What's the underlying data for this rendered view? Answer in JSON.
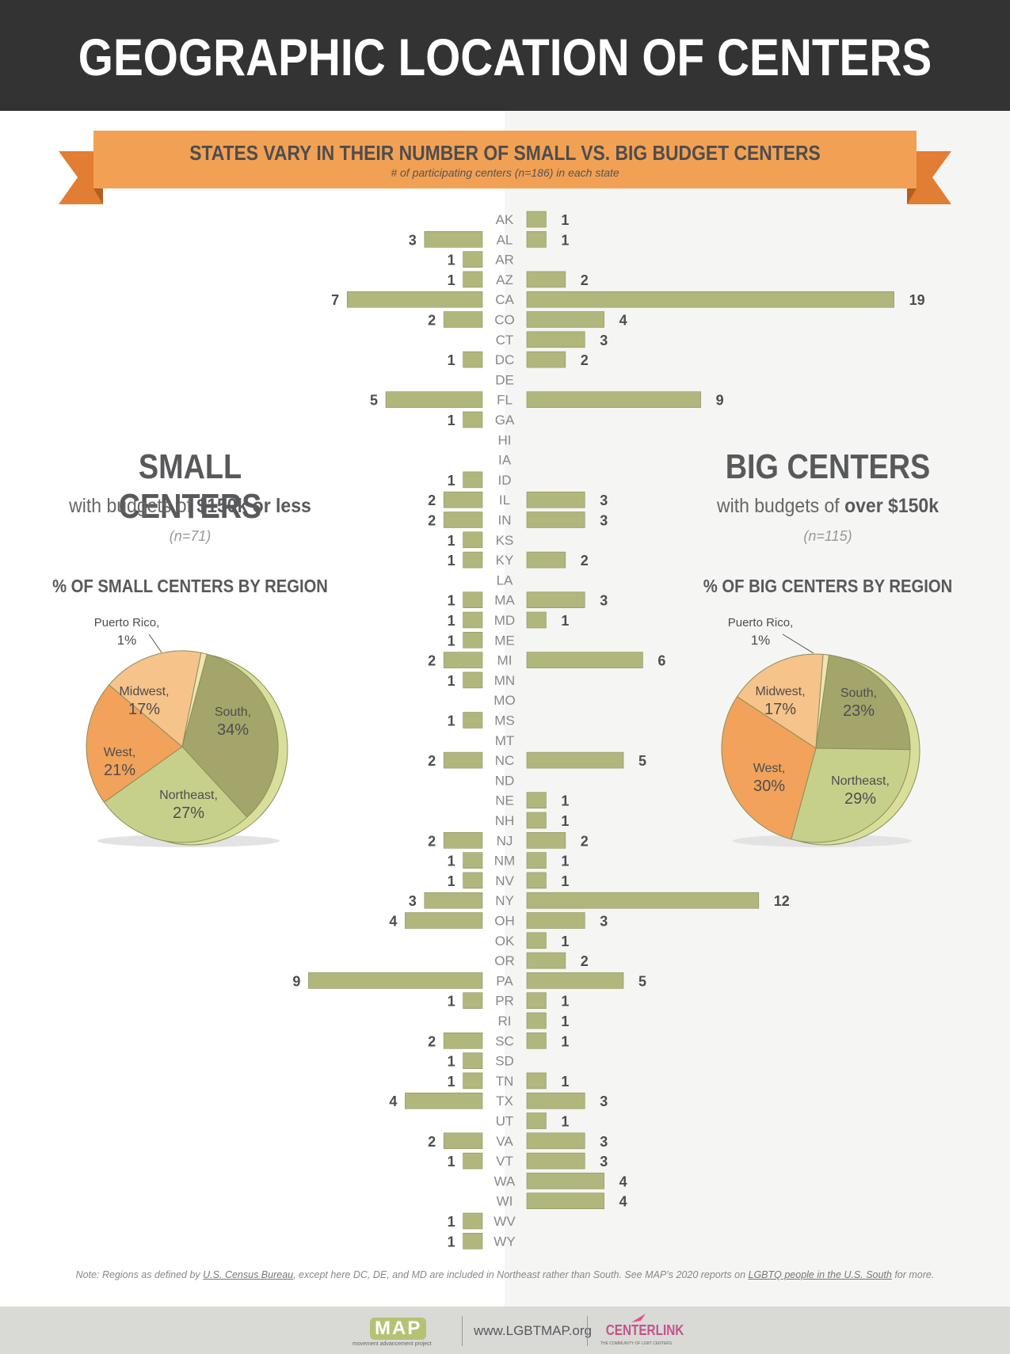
{
  "header": {
    "title": "GEOGRAPHIC LOCATION OF CENTERS"
  },
  "banner": {
    "title": "STATES VARY IN THEIR NUMBER OF SMALL VS. BIG BUDGET CENTERS",
    "subtitle": "# of participating centers (n=186) in each state"
  },
  "small": {
    "title": "SMALL CENTERS",
    "subtitle_pre": "with budgets of ",
    "subtitle_bold": "$150k or less",
    "n": "(n=71)",
    "pie_title": "% OF SMALL CENTERS BY REGION"
  },
  "big": {
    "title": "BIG CENTERS",
    "subtitle_pre": "with budgets of ",
    "subtitle_bold": "over $150k",
    "n": "(n=115)",
    "pie_title": "% OF BIG CENTERS BY REGION"
  },
  "chart_data": [
    {
      "type": "bar",
      "orientation": "horizontal-butterfly",
      "categories": [
        "AK",
        "AL",
        "AR",
        "AZ",
        "CA",
        "CO",
        "CT",
        "DC",
        "DE",
        "FL",
        "GA",
        "HI",
        "IA",
        "ID",
        "IL",
        "IN",
        "KS",
        "KY",
        "LA",
        "MA",
        "MD",
        "ME",
        "MI",
        "MN",
        "MO",
        "MS",
        "MT",
        "NC",
        "ND",
        "NE",
        "NH",
        "NJ",
        "NM",
        "NV",
        "NY",
        "OH",
        "OK",
        "OR",
        "PA",
        "PR",
        "RI",
        "SC",
        "SD",
        "TN",
        "TX",
        "UT",
        "VA",
        "VT",
        "WA",
        "WI",
        "WV",
        "WY"
      ],
      "series": [
        {
          "name": "SMALL CENTERS",
          "values": [
            0,
            3,
            1,
            1,
            7,
            2,
            0,
            1,
            0,
            5,
            1,
            0,
            0,
            1,
            2,
            2,
            1,
            1,
            0,
            1,
            1,
            1,
            2,
            1,
            0,
            1,
            0,
            2,
            0,
            0,
            0,
            2,
            1,
            1,
            3,
            4,
            0,
            0,
            9,
            1,
            0,
            2,
            1,
            1,
            4,
            0,
            2,
            1,
            0,
            0,
            1,
            1
          ]
        },
        {
          "name": "BIG CENTERS",
          "values": [
            1,
            1,
            0,
            2,
            19,
            4,
            3,
            2,
            0,
            9,
            0,
            0,
            0,
            0,
            3,
            3,
            0,
            2,
            0,
            3,
            1,
            0,
            6,
            0,
            0,
            0,
            0,
            5,
            0,
            1,
            1,
            2,
            1,
            1,
            12,
            3,
            1,
            2,
            5,
            1,
            1,
            1,
            0,
            1,
            3,
            1,
            3,
            3,
            4,
            4,
            0,
            0
          ]
        }
      ],
      "colors": {
        "bar": "#b1b67c",
        "bar_stroke": "#8b8f5a"
      }
    },
    {
      "type": "pie",
      "title": "% OF SMALL CENTERS BY REGION",
      "slices": [
        {
          "label": "South",
          "value": 34,
          "display": "34%",
          "color": "#a3a56a"
        },
        {
          "label": "Northeast",
          "value": 27,
          "display": "27%",
          "color": "#c7d08a"
        },
        {
          "label": "West",
          "value": 21,
          "display": "21%",
          "color": "#f2a25a"
        },
        {
          "label": "Midwest",
          "value": 17,
          "display": "17%",
          "color": "#f6c38a"
        },
        {
          "label": "Puerto Rico",
          "value": 1,
          "display": "1%",
          "color": "#f0e4b0"
        }
      ]
    },
    {
      "type": "pie",
      "title": "% OF BIG CENTERS BY REGION",
      "slices": [
        {
          "label": "South",
          "value": 23,
          "display": "23%",
          "color": "#a3a56a"
        },
        {
          "label": "Northeast",
          "value": 29,
          "display": "29%",
          "color": "#c7d08a"
        },
        {
          "label": "West",
          "value": 30,
          "display": "30%",
          "color": "#f2a25a"
        },
        {
          "label": "Midwest",
          "value": 17,
          "display": "17%",
          "color": "#f6c38a"
        },
        {
          "label": "Puerto Rico",
          "value": 1,
          "display": "1%",
          "color": "#f0e4b0"
        }
      ]
    }
  ],
  "note": {
    "pre": "Note: Regions as defined by ",
    "link1": "U.S. Census Bureau",
    "mid": ", except here DC, DE, and MD are included in Northeast rather than South. See MAP’s 2020 reports on ",
    "link2": "LGBTQ people in the U.S. South",
    "post": " for more."
  },
  "footer": {
    "map_logo": "MAP",
    "map_sub": "movement advancement project",
    "url": "www.LGBTMAP.org",
    "centerlink": "CENTERLINK",
    "centerlink_sub": "THE COMMUNITY OF LGBT CENTERS"
  },
  "colors": {
    "header_bg": "#333333",
    "ribbon": "#f2a154",
    "ribbon_dark": "#e07f36",
    "footer_bg": "#d9d9d6"
  }
}
